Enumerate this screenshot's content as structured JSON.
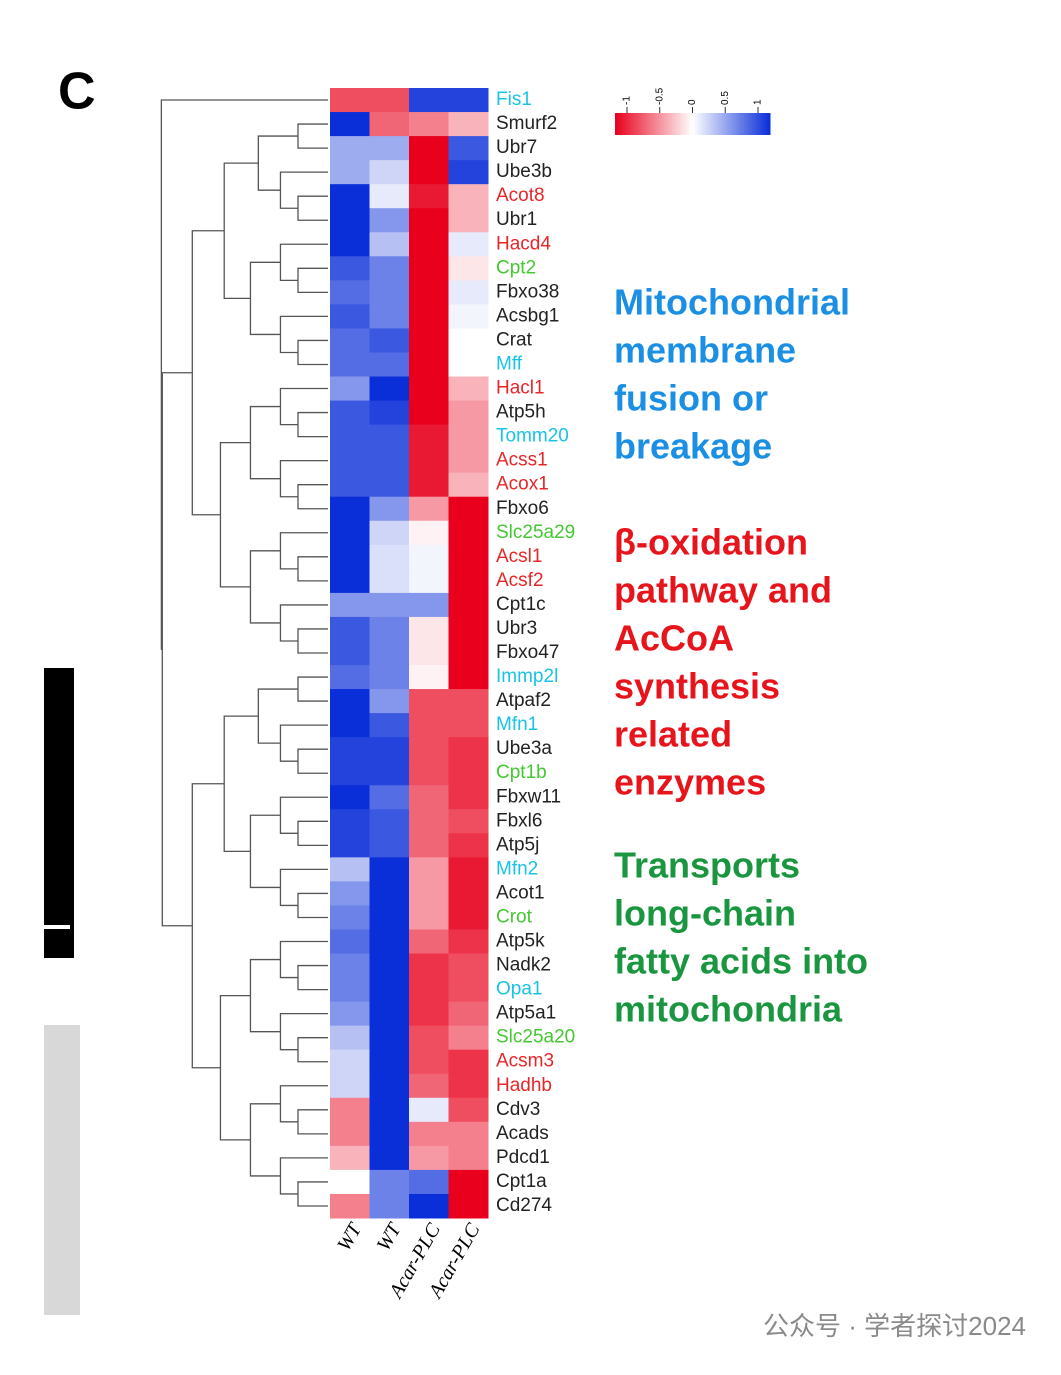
{
  "chart_data": {
    "type": "heatmap",
    "panel_label": "C",
    "rows": [
      "Fis1",
      "Smurf2",
      "Ubr7",
      "Ube3b",
      "Acot8",
      "Ubr1",
      "Hacd4",
      "Cpt2",
      "Fbxo38",
      "Acsbg1",
      "Crat",
      "Mff",
      "Hacl1",
      "Atp5h",
      "Tomm20",
      "Acss1",
      "Acox1",
      "Fbxo6",
      "Slc25a29",
      "Acsl1",
      "Acsf2",
      "Cpt1c",
      "Ubr3",
      "Fbxo47",
      "Immp2l",
      "Atpaf2",
      "Mfn1",
      "Ube3a",
      "Cpt1b",
      "Fbxw11",
      "Fbxl6",
      "Atp5j",
      "Mfn2",
      "Acot1",
      "Crot",
      "Atp5k",
      "Nadk2",
      "Opa1",
      "Atp5a1",
      "Slc25a20",
      "Acsm3",
      "Hadhb",
      "Cdv3",
      "Acads",
      "Pdcd1",
      "Cpt1a",
      "Cd274"
    ],
    "row_colors": [
      "#19c3e6",
      "#222222",
      "#222222",
      "#222222",
      "#e8262a",
      "#222222",
      "#e8262a",
      "#44c832",
      "#222222",
      "#222222",
      "#222222",
      "#19c3e6",
      "#e8262a",
      "#222222",
      "#19c3e6",
      "#e8262a",
      "#e8262a",
      "#222222",
      "#44c832",
      "#e8262a",
      "#e8262a",
      "#222222",
      "#222222",
      "#222222",
      "#19c3e6",
      "#222222",
      "#19c3e6",
      "#222222",
      "#44c832",
      "#222222",
      "#222222",
      "#222222",
      "#19c3e6",
      "#222222",
      "#44c832",
      "#222222",
      "#222222",
      "#19c3e6",
      "#222222",
      "#44c832",
      "#e8262a",
      "#e8262a",
      "#222222",
      "#222222",
      "#222222",
      "#222222",
      "#222222"
    ],
    "columns": [
      "WT",
      "WT",
      "Acar-PLC",
      "Acar-PLC"
    ],
    "values": [
      [
        -0.7,
        -0.7,
        0.9,
        0.9
      ],
      [
        1,
        -0.6,
        -0.5,
        -0.3
      ],
      [
        0.4,
        0.4,
        -1,
        0.8
      ],
      [
        0.4,
        0.2,
        -1,
        0.9
      ],
      [
        1,
        0.1,
        -0.9,
        -0.3
      ],
      [
        1,
        0.5,
        -1,
        -0.3
      ],
      [
        1,
        0.3,
        -1,
        0.1
      ],
      [
        0.8,
        0.6,
        -1,
        -0.1
      ],
      [
        0.7,
        0.6,
        -1,
        0.1
      ],
      [
        0.8,
        0.6,
        -1,
        0.05
      ],
      [
        0.7,
        0.8,
        -1,
        0
      ],
      [
        0.7,
        0.7,
        -1,
        0
      ],
      [
        0.5,
        1,
        -1,
        -0.3
      ],
      [
        0.8,
        0.9,
        -1,
        -0.4
      ],
      [
        0.8,
        0.8,
        -0.9,
        -0.4
      ],
      [
        0.8,
        0.8,
        -0.9,
        -0.4
      ],
      [
        0.8,
        0.8,
        -0.9,
        -0.3
      ],
      [
        1,
        0.5,
        -0.4,
        -1
      ],
      [
        1,
        0.2,
        -0.05,
        -1
      ],
      [
        1,
        0.15,
        0.05,
        -1
      ],
      [
        1,
        0.15,
        0.05,
        -1
      ],
      [
        0.5,
        0.5,
        0.5,
        -1
      ],
      [
        0.8,
        0.6,
        -0.1,
        -1
      ],
      [
        0.8,
        0.6,
        -0.1,
        -1
      ],
      [
        0.7,
        0.6,
        -0.05,
        -1
      ],
      [
        1,
        0.5,
        -0.7,
        -0.7
      ],
      [
        1,
        0.8,
        -0.7,
        -0.7
      ],
      [
        0.9,
        0.9,
        -0.7,
        -0.8
      ],
      [
        0.9,
        0.9,
        -0.7,
        -0.8
      ],
      [
        1,
        0.7,
        -0.6,
        -0.8
      ],
      [
        0.9,
        0.8,
        -0.6,
        -0.7
      ],
      [
        0.9,
        0.8,
        -0.6,
        -0.8
      ],
      [
        0.3,
        1,
        -0.4,
        -0.9
      ],
      [
        0.5,
        1,
        -0.4,
        -0.9
      ],
      [
        0.6,
        1,
        -0.4,
        -0.9
      ],
      [
        0.7,
        1,
        -0.6,
        -0.8
      ],
      [
        0.6,
        1,
        -0.8,
        -0.7
      ],
      [
        0.6,
        1,
        -0.8,
        -0.7
      ],
      [
        0.5,
        1,
        -0.8,
        -0.6
      ],
      [
        0.3,
        1,
        -0.7,
        -0.5
      ],
      [
        0.2,
        1,
        -0.7,
        -0.8
      ],
      [
        0.2,
        1,
        -0.6,
        -0.8
      ],
      [
        -0.5,
        1,
        0.1,
        -0.7
      ],
      [
        -0.5,
        1,
        -0.5,
        -0.5
      ],
      [
        -0.3,
        1,
        -0.4,
        -0.5
      ],
      [
        0,
        0.6,
        0.7,
        -1
      ],
      [
        -0.5,
        0.6,
        1,
        -1
      ]
    ],
    "colorscale": [
      "#e8001c",
      "#ffffff",
      "#0a2ed8"
    ],
    "clim": [
      -1,
      1
    ],
    "cticks": [
      -1,
      -0.5,
      0,
      0.5,
      1
    ],
    "annotations": [
      {
        "lines": [
          "Mitochondrial",
          "membrane",
          "fusion or",
          "breakage"
        ],
        "color": "#1a8fe3"
      },
      {
        "lines": [
          "β-oxidation",
          "pathway and",
          "AcCoA",
          "synthesis",
          "related",
          "enzymes"
        ],
        "color": "#e8141c"
      },
      {
        "lines": [
          "Transports",
          "long-chain",
          "fatty acids into",
          "mitochondria"
        ],
        "color": "#1a9640"
      }
    ],
    "watermark": "公众号 · 学者探讨2024"
  }
}
